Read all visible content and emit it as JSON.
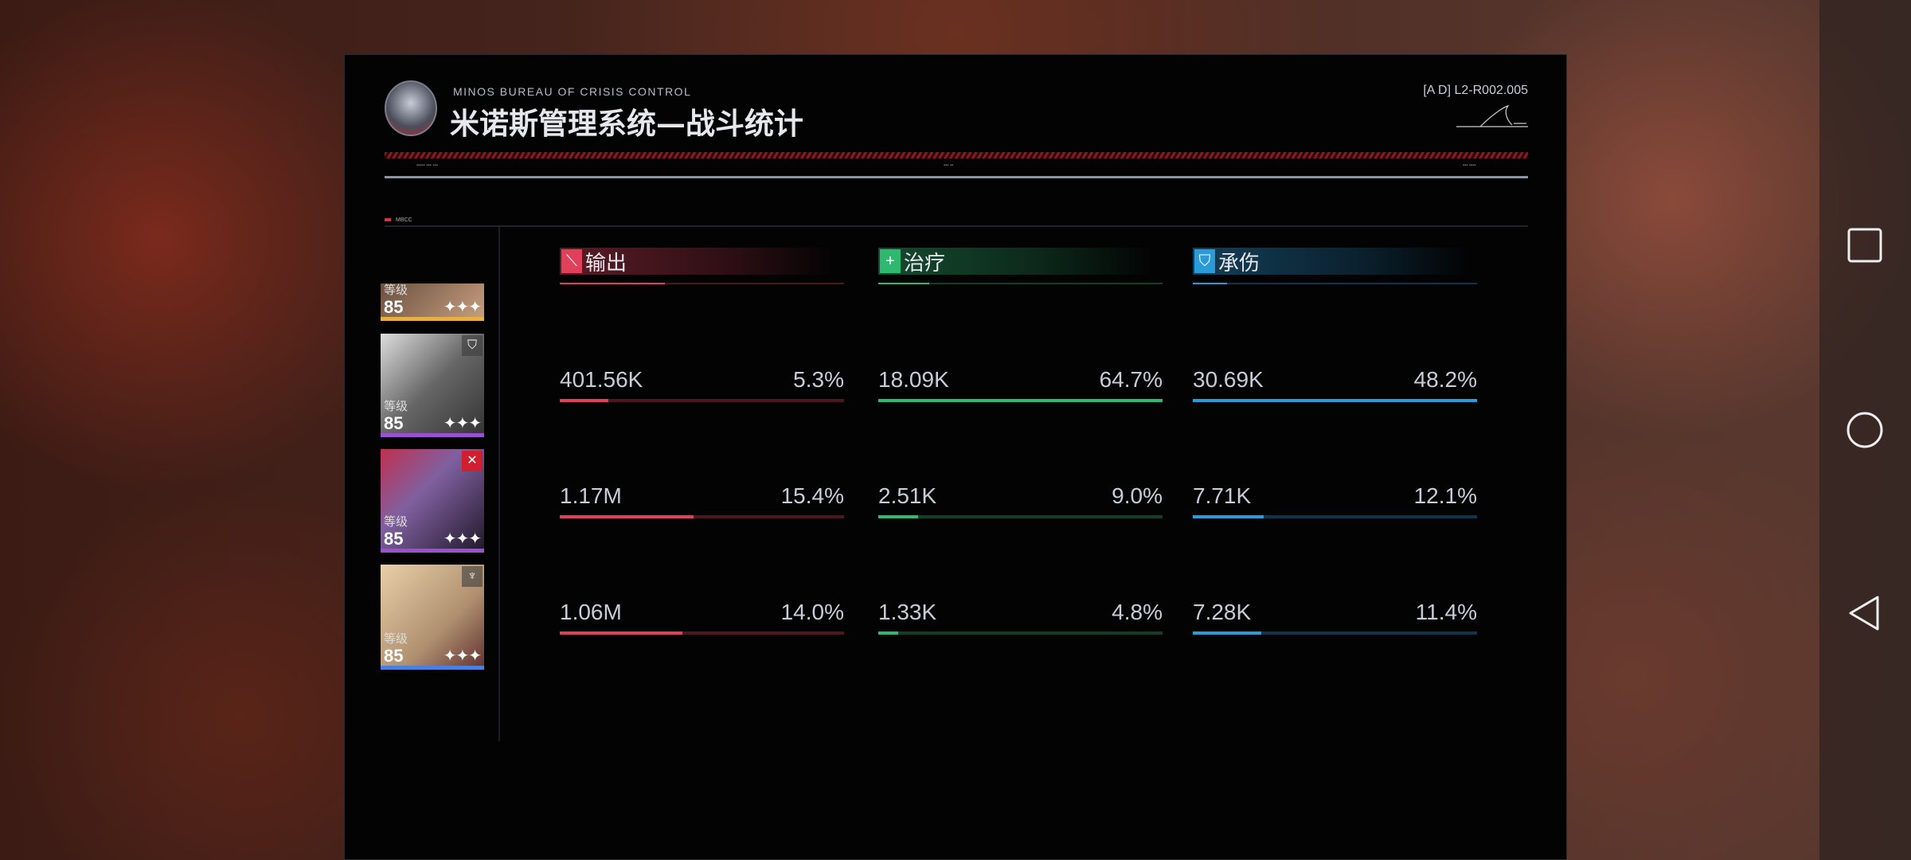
{
  "header": {
    "org": "MINOS BUREAU OF CRISIS CONTROL",
    "title": "米诺斯管理系统—战斗统计",
    "code": "[A D] L2-R002.005",
    "section": "MBCC"
  },
  "colors": {
    "output": "#e0405a",
    "healing": "#2eb870",
    "tanking": "#2a9ad8"
  },
  "columns": [
    {
      "label": "输出",
      "icon": "sword-icon"
    },
    {
      "label": "治疗",
      "icon": "plus-icon"
    },
    {
      "label": "承伤",
      "icon": "shield-icon"
    }
  ],
  "characters": [
    {
      "level_label": "等级",
      "level": "85",
      "stars": "✦✦✦",
      "rarity_color": "#e8b040",
      "class_icon": "",
      "fill": [
        0.37,
        0.18,
        0.12
      ],
      "stats": [
        {
          "value": "",
          "pct": ""
        },
        {
          "value": "",
          "pct": ""
        },
        {
          "value": "",
          "pct": ""
        }
      ]
    },
    {
      "level_label": "等级",
      "level": "85",
      "stars": "✦✦✦",
      "rarity_color": "#9a50d0",
      "class_icon": "shield-class-icon",
      "fill": [
        0.17,
        1.0,
        1.0
      ],
      "stats": [
        {
          "value": "401.56K",
          "pct": "5.3%"
        },
        {
          "value": "18.09K",
          "pct": "64.7%"
        },
        {
          "value": "30.69K",
          "pct": "48.2%"
        }
      ]
    },
    {
      "level_label": "等级",
      "level": "85",
      "stars": "✦✦✦",
      "rarity_color": "#9a50d0",
      "class_icon": "crossed-swords-icon",
      "fill": [
        0.47,
        0.14,
        0.25
      ],
      "stats": [
        {
          "value": "1.17M",
          "pct": "15.4%"
        },
        {
          "value": "2.51K",
          "pct": "9.0%"
        },
        {
          "value": "7.71K",
          "pct": "12.1%"
        }
      ]
    },
    {
      "level_label": "等级",
      "level": "85",
      "stars": "✦✦✦",
      "rarity_color": "#4a80e0",
      "class_icon": "support-class-icon",
      "fill": [
        0.43,
        0.07,
        0.24
      ],
      "stats": [
        {
          "value": "1.06M",
          "pct": "14.0%"
        },
        {
          "value": "1.33K",
          "pct": "4.8%"
        },
        {
          "value": "7.28K",
          "pct": "11.4%"
        }
      ]
    }
  ]
}
